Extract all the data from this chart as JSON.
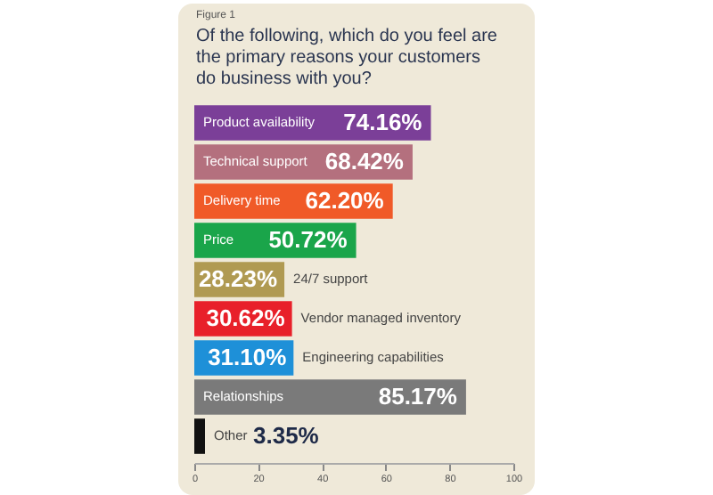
{
  "chart_data": {
    "type": "bar",
    "orientation": "horizontal",
    "title": "Of the following, which do you feel are the primary reasons your customers do business with you?",
    "annotations": [
      "Figure 1"
    ],
    "categories": [
      "Product availability",
      "Technical support",
      "Delivery time",
      "Price",
      "24/7 support",
      "Vendor managed inventory",
      "Engineering capabilities",
      "Relationships",
      "Other"
    ],
    "values": [
      74.16,
      68.42,
      62.2,
      50.72,
      28.23,
      30.62,
      31.1,
      85.17,
      3.35
    ],
    "value_labels": [
      "74.16%",
      "68.42%",
      "62.20%",
      "50.72%",
      "28.23%",
      "30.62%",
      "31.10%",
      "85.17%",
      "3.35%"
    ],
    "colors": [
      "#7b3f98",
      "#b4707e",
      "#f05a28",
      "#1aa54a",
      "#b09a52",
      "#e8202a",
      "#1e90d8",
      "#7a7a7a",
      "#111111"
    ],
    "xlim": [
      0,
      100
    ],
    "xticks": [
      0,
      20,
      40,
      60,
      80,
      100
    ],
    "tick_labels": "x",
    "grid": false
  }
}
